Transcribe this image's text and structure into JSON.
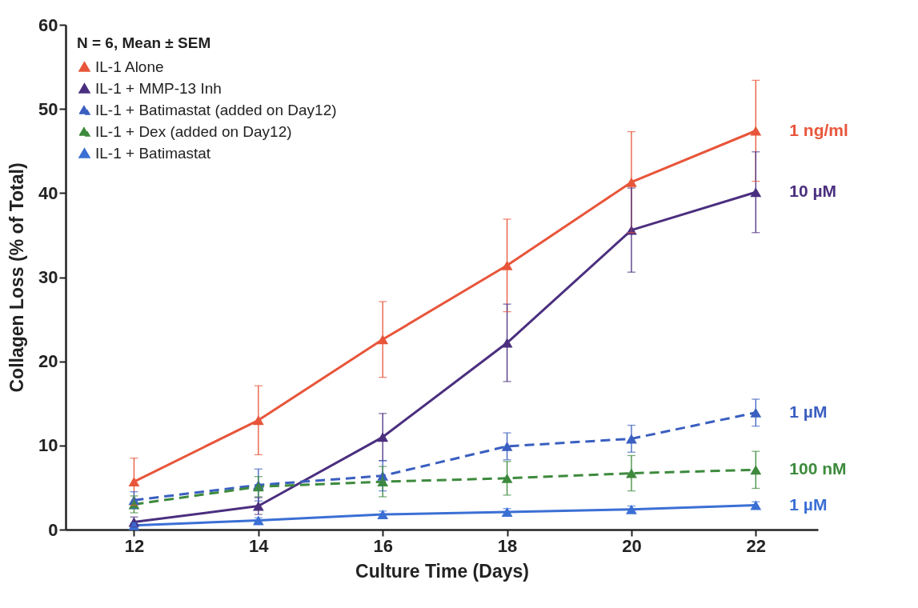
{
  "chart_data": {
    "type": "line",
    "xlabel": "Culture Time (Days)",
    "ylabel": "Collagen Loss (% of Total)",
    "legend_title": "N = 6, Mean ± SEM",
    "x": [
      12,
      14,
      16,
      18,
      20,
      22
    ],
    "series": [
      {
        "name": "IL-1 Alone",
        "color": "#e8553a",
        "line_style": "solid",
        "values": [
          5.7,
          13.0,
          22.6,
          31.4,
          41.3,
          47.4
        ],
        "errors": [
          2.8,
          4.1,
          4.5,
          5.5,
          6.0,
          6.0
        ]
      },
      {
        "name": "IL-1 + MMP-13 Inh",
        "color": "#4b2f7f",
        "line_style": "solid",
        "values": [
          0.9,
          2.8,
          11.0,
          22.2,
          35.6,
          40.1
        ],
        "errors": [
          0.6,
          1.0,
          2.8,
          4.6,
          5.0,
          4.8
        ]
      },
      {
        "name": "IL-1 + Batimastat (added on Day12)",
        "color": "#3a5fc0",
        "line_style": "dashed",
        "values": [
          3.5,
          5.3,
          6.4,
          9.9,
          10.8,
          13.9
        ],
        "errors": [
          1.0,
          1.9,
          1.8,
          1.6,
          1.6,
          1.6
        ]
      },
      {
        "name": "IL-1 + Dex (added on Day12)",
        "color": "#3d8a3d",
        "line_style": "dashed",
        "values": [
          3.0,
          5.1,
          5.7,
          6.1,
          6.7,
          7.1
        ],
        "errors": [
          1.0,
          1.2,
          1.8,
          2.0,
          2.1,
          2.2
        ]
      },
      {
        "name": "IL-1 + Batimastat",
        "color": "#3b6fd4",
        "line_style": "solid",
        "values": [
          0.5,
          1.1,
          1.8,
          2.1,
          2.4,
          2.9
        ],
        "errors": [
          0.3,
          0.3,
          0.4,
          0.4,
          0.4,
          0.4
        ]
      }
    ],
    "annotations": [
      "1 ng/ml",
      "10 µM",
      "1 µM",
      "100 nM",
      "1 µM"
    ],
    "xlim": [
      10.9,
      23
    ],
    "xticks": [
      12,
      14,
      16,
      18,
      20,
      22
    ],
    "ylim": [
      0,
      60
    ],
    "yticks": [
      0,
      10,
      20,
      30,
      40,
      50,
      60
    ],
    "grid": false,
    "legend": "top left",
    "marker": "triangle"
  }
}
